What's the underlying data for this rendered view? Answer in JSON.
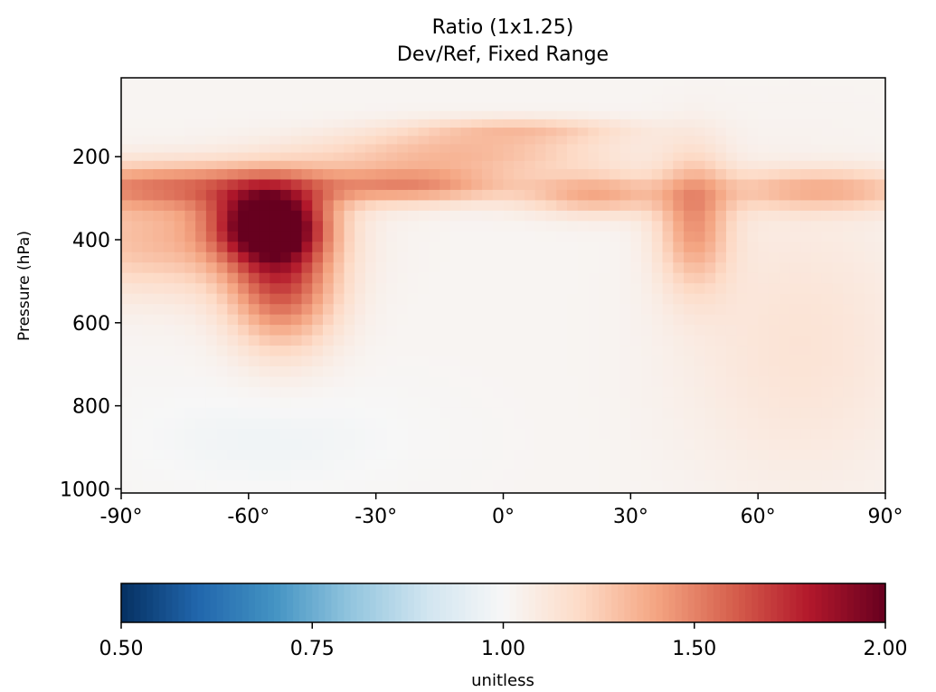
{
  "chart_data": {
    "type": "heatmap",
    "title": "Ratio (1x1.25)",
    "subtitle": "Dev/Ref, Fixed Range",
    "ylabel": "Pressure (hPa)",
    "xlabel": "",
    "x_ticks": [
      {
        "value": -90,
        "label": "-90°"
      },
      {
        "value": -60,
        "label": "-60°"
      },
      {
        "value": -30,
        "label": "-30°"
      },
      {
        "value": 0,
        "label": "0°"
      },
      {
        "value": 30,
        "label": "30°"
      },
      {
        "value": 60,
        "label": "60°"
      },
      {
        "value": 90,
        "label": "90°"
      }
    ],
    "y_ticks": [
      {
        "value": 200,
        "label": "200"
      },
      {
        "value": 400,
        "label": "400"
      },
      {
        "value": 600,
        "label": "600"
      },
      {
        "value": 800,
        "label": "800"
      },
      {
        "value": 1000,
        "label": "1000"
      }
    ],
    "xlim": [
      -90,
      90
    ],
    "ylim": [
      1010,
      10
    ],
    "grid": false,
    "colormap": "RdBu_r",
    "colorbar": {
      "label": "unitless",
      "min": 0.5,
      "center": 1.0,
      "max": 2.0,
      "scale": "two-slope",
      "ticks": [
        {
          "value": 0.5,
          "label": "0.50"
        },
        {
          "value": 0.75,
          "label": "0.75"
        },
        {
          "value": 1.0,
          "label": "1.00"
        },
        {
          "value": 1.5,
          "label": "1.50"
        },
        {
          "value": 2.0,
          "label": "2.00"
        }
      ]
    },
    "field": {
      "background": 1.02,
      "features": [
        {
          "lat": 5,
          "pres": 135,
          "lat_width": 18,
          "pres_width": 20,
          "value": 0.2
        },
        {
          "lat": -10,
          "pres": 190,
          "lat_width": 25,
          "pres_width": 40,
          "value": 0.3
        },
        {
          "lat": -75,
          "pres": 270,
          "lat_width": 30,
          "pres_width": 40,
          "value": 0.42
        },
        {
          "lat": -55,
          "pres": 360,
          "lat_width": 9,
          "pres_width": 60,
          "value": 0.9
        },
        {
          "lat": -52,
          "pres": 500,
          "lat_width": 9,
          "pres_width": 110,
          "value": 0.6
        },
        {
          "lat": -80,
          "pres": 400,
          "lat_width": 22,
          "pres_width": 90,
          "value": 0.3
        },
        {
          "lat": -20,
          "pres": 270,
          "lat_width": 16,
          "pres_width": 30,
          "value": 0.35
        },
        {
          "lat": 22,
          "pres": 290,
          "lat_width": 12,
          "pres_width": 35,
          "value": 0.35
        },
        {
          "lat": 45,
          "pres": 360,
          "lat_width": 6,
          "pres_width": 110,
          "value": 0.4
        },
        {
          "lat": 75,
          "pres": 280,
          "lat_width": 18,
          "pres_width": 35,
          "value": 0.32
        },
        {
          "lat": 70,
          "pres": 650,
          "lat_width": 20,
          "pres_width": 250,
          "value": 0.12
        },
        {
          "lat": -55,
          "pres": 880,
          "lat_width": 25,
          "pres_width": 100,
          "value": -0.04
        }
      ]
    }
  }
}
